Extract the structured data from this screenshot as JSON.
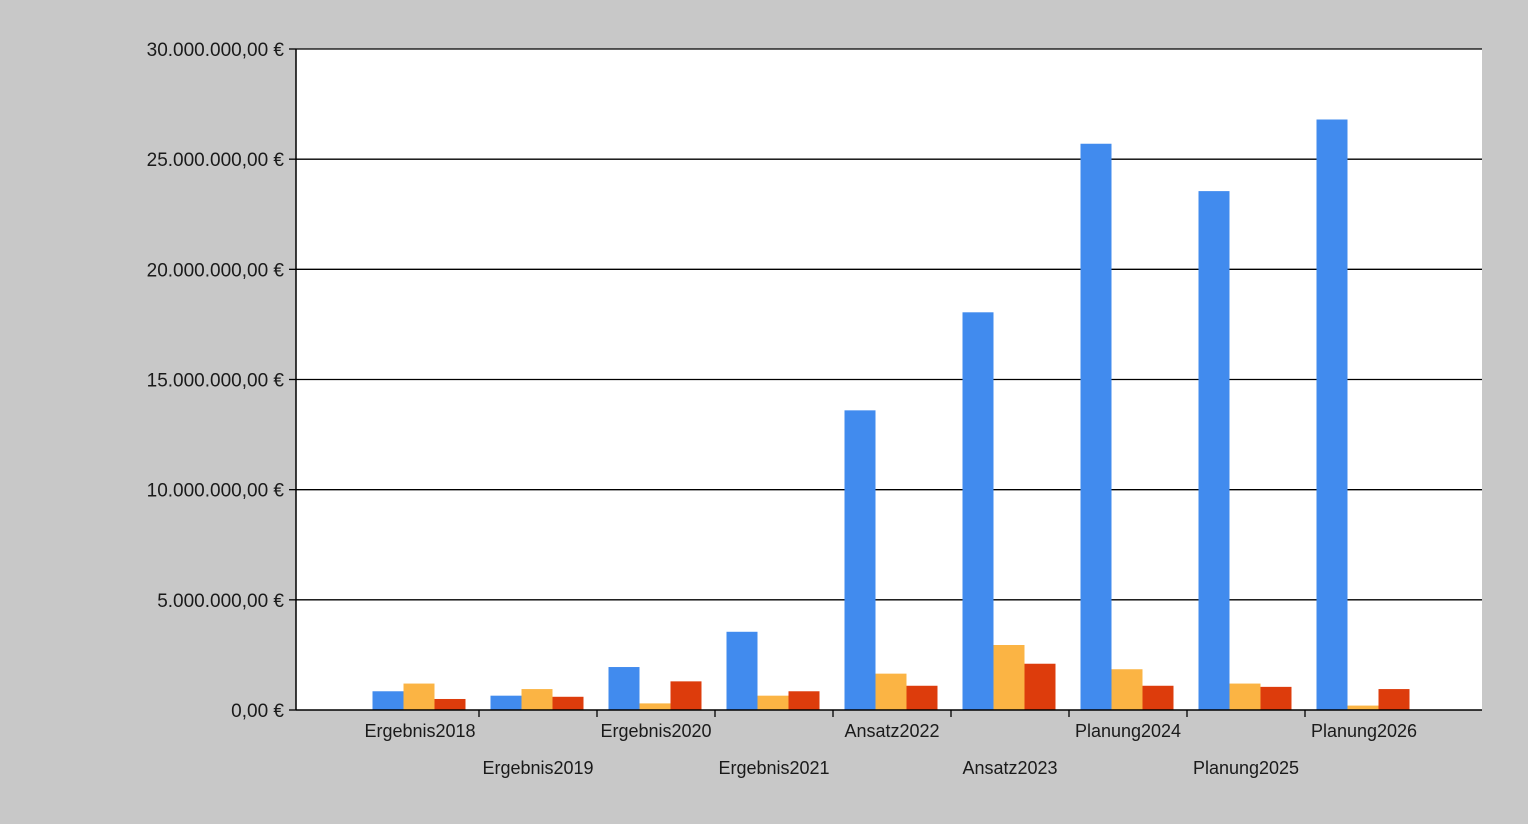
{
  "chart_data": {
    "type": "bar",
    "categories": [
      "Ergebnis2018",
      "Ergebnis2019",
      "Ergebnis2020",
      "Ergebnis2021",
      "Ansatz2022",
      "Ansatz2023",
      "Planung2024",
      "Planung2025",
      "Planung2026"
    ],
    "series": [
      {
        "color": "#418bee",
        "values": [
          850000,
          650000,
          1950000,
          3550000,
          13600000,
          18050000,
          25700000,
          23550000,
          26800000
        ]
      },
      {
        "color": "#fbb444",
        "values": [
          1200000,
          950000,
          300000,
          650000,
          1650000,
          2950000,
          1850000,
          1200000,
          200000
        ]
      },
      {
        "color": "#dd3c0c",
        "values": [
          500000,
          600000,
          1300000,
          850000,
          1100000,
          2100000,
          1100000,
          1050000,
          950000
        ]
      }
    ],
    "ylim": [
      0,
      30000000
    ],
    "y_ticks": [
      0,
      5000000,
      10000000,
      15000000,
      20000000,
      25000000,
      30000000
    ],
    "y_tick_labels": [
      "0,00 €",
      "5.000.000,00 €",
      "10.000.000,00 €",
      "15.000.000,00 €",
      "20.000.000,00 €",
      "25.000.000,00 €",
      "30.000.000,00 €"
    ],
    "grid": true,
    "plot_background": "#ffffff",
    "outer_background": "#c8c8c8"
  }
}
